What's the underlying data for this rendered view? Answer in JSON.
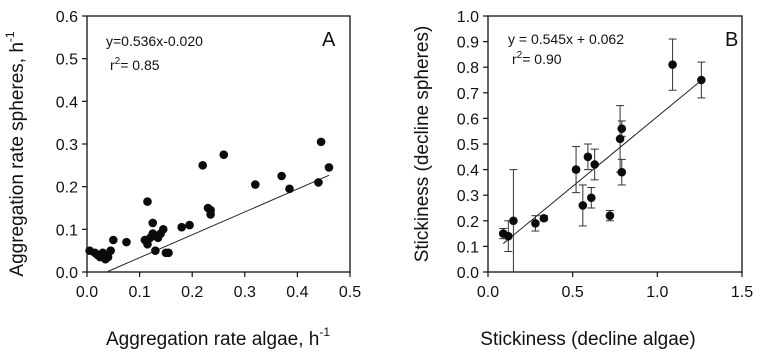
{
  "chart_data": [
    {
      "type": "scatter",
      "panel_label": "A",
      "xlabel": "Aggregation rate algae, h",
      "xlabel_sup": "-1",
      "ylabel": "Aggregation rate spheres, h",
      "ylabel_sup": "-1",
      "xlim": [
        0,
        0.5
      ],
      "ylim": [
        0,
        0.6
      ],
      "xticks": [
        "0.0",
        "0.1",
        "0.2",
        "0.3",
        "0.4",
        "0.5"
      ],
      "xtick_values": [
        0,
        0.1,
        0.2,
        0.3,
        0.4,
        0.5
      ],
      "yticks": [
        "0.0",
        "0.1",
        "0.2",
        "0.3",
        "0.4",
        "0.5",
        "0.6"
      ],
      "ytick_values": [
        0,
        0.1,
        0.2,
        0.3,
        0.4,
        0.5,
        0.6
      ],
      "equation": "y=0.536x-0.020",
      "r2_prefix": "r",
      "r2_sup": "2",
      "r2_value": "= 0.85",
      "fit": {
        "slope": 0.536,
        "intercept": -0.02,
        "x_range": [
          0.04,
          0.46
        ]
      },
      "series": [
        {
          "points": [
            [
              0.005,
              0.05
            ],
            [
              0.015,
              0.045
            ],
            [
              0.02,
              0.04
            ],
            [
              0.025,
              0.035
            ],
            [
              0.03,
              0.045
            ],
            [
              0.035,
              0.03
            ],
            [
              0.04,
              0.035
            ],
            [
              0.045,
              0.05
            ],
            [
              0.05,
              0.075
            ],
            [
              0.075,
              0.07
            ],
            [
              0.11,
              0.075
            ],
            [
              0.115,
              0.065
            ],
            [
              0.115,
              0.165
            ],
            [
              0.12,
              0.08
            ],
            [
              0.125,
              0.09
            ],
            [
              0.125,
              0.115
            ],
            [
              0.13,
              0.05
            ],
            [
              0.135,
              0.08
            ],
            [
              0.14,
              0.09
            ],
            [
              0.145,
              0.1
            ],
            [
              0.15,
              0.045
            ],
            [
              0.155,
              0.045
            ],
            [
              0.18,
              0.105
            ],
            [
              0.195,
              0.11
            ],
            [
              0.22,
              0.25
            ],
            [
              0.23,
              0.15
            ],
            [
              0.235,
              0.145
            ],
            [
              0.235,
              0.135
            ],
            [
              0.26,
              0.275
            ],
            [
              0.32,
              0.205
            ],
            [
              0.37,
              0.225
            ],
            [
              0.385,
              0.195
            ],
            [
              0.44,
              0.21
            ],
            [
              0.445,
              0.305
            ],
            [
              0.46,
              0.245
            ]
          ]
        }
      ]
    },
    {
      "type": "scatter",
      "panel_label": "B",
      "xlabel": "Stickiness (decline algae)",
      "ylabel": "Stickiness (decline spheres)",
      "xlim": [
        0,
        1.5
      ],
      "ylim": [
        0,
        1.0
      ],
      "xticks": [
        "0.0",
        "0.5",
        "1.0",
        "1.5"
      ],
      "xtick_values": [
        0,
        0.5,
        1.0,
        1.5
      ],
      "yticks": [
        "0.0",
        "0.1",
        "0.2",
        "0.3",
        "0.4",
        "0.5",
        "0.6",
        "0.7",
        "0.8",
        "0.9",
        "1.0"
      ],
      "ytick_values": [
        0,
        0.1,
        0.2,
        0.3,
        0.4,
        0.5,
        0.6,
        0.7,
        0.8,
        0.9,
        1.0
      ],
      "equation": "y = 0.545x + 0.062",
      "r2_prefix": "r",
      "r2_sup": "2",
      "r2_value": "= 0.90",
      "fit": {
        "slope": 0.545,
        "intercept": 0.062,
        "x_range": [
          0.09,
          1.26
        ]
      },
      "series": [
        {
          "points": [
            {
              "x": 0.09,
              "y": 0.15,
              "err": 0.02
            },
            {
              "x": 0.12,
              "y": 0.14,
              "err": 0.06
            },
            {
              "x": 0.15,
              "y": 0.2,
              "err": 0.2
            },
            {
              "x": 0.28,
              "y": 0.19,
              "err": 0.03
            },
            {
              "x": 0.33,
              "y": 0.21,
              "err": 0.01
            },
            {
              "x": 0.52,
              "y": 0.4,
              "err": 0.09
            },
            {
              "x": 0.56,
              "y": 0.26,
              "err": 0.08
            },
            {
              "x": 0.59,
              "y": 0.45,
              "err": 0.05
            },
            {
              "x": 0.61,
              "y": 0.29,
              "err": 0.04
            },
            {
              "x": 0.63,
              "y": 0.42,
              "err": 0.06
            },
            {
              "x": 0.72,
              "y": 0.22,
              "err": 0.02
            },
            {
              "x": 0.78,
              "y": 0.52,
              "err": 0.13
            },
            {
              "x": 0.79,
              "y": 0.56,
              "err": 0.03
            },
            {
              "x": 0.79,
              "y": 0.39,
              "err": 0.05
            },
            {
              "x": 1.09,
              "y": 0.81,
              "err": 0.1
            },
            {
              "x": 1.26,
              "y": 0.75,
              "err": 0.07
            }
          ]
        }
      ]
    }
  ]
}
